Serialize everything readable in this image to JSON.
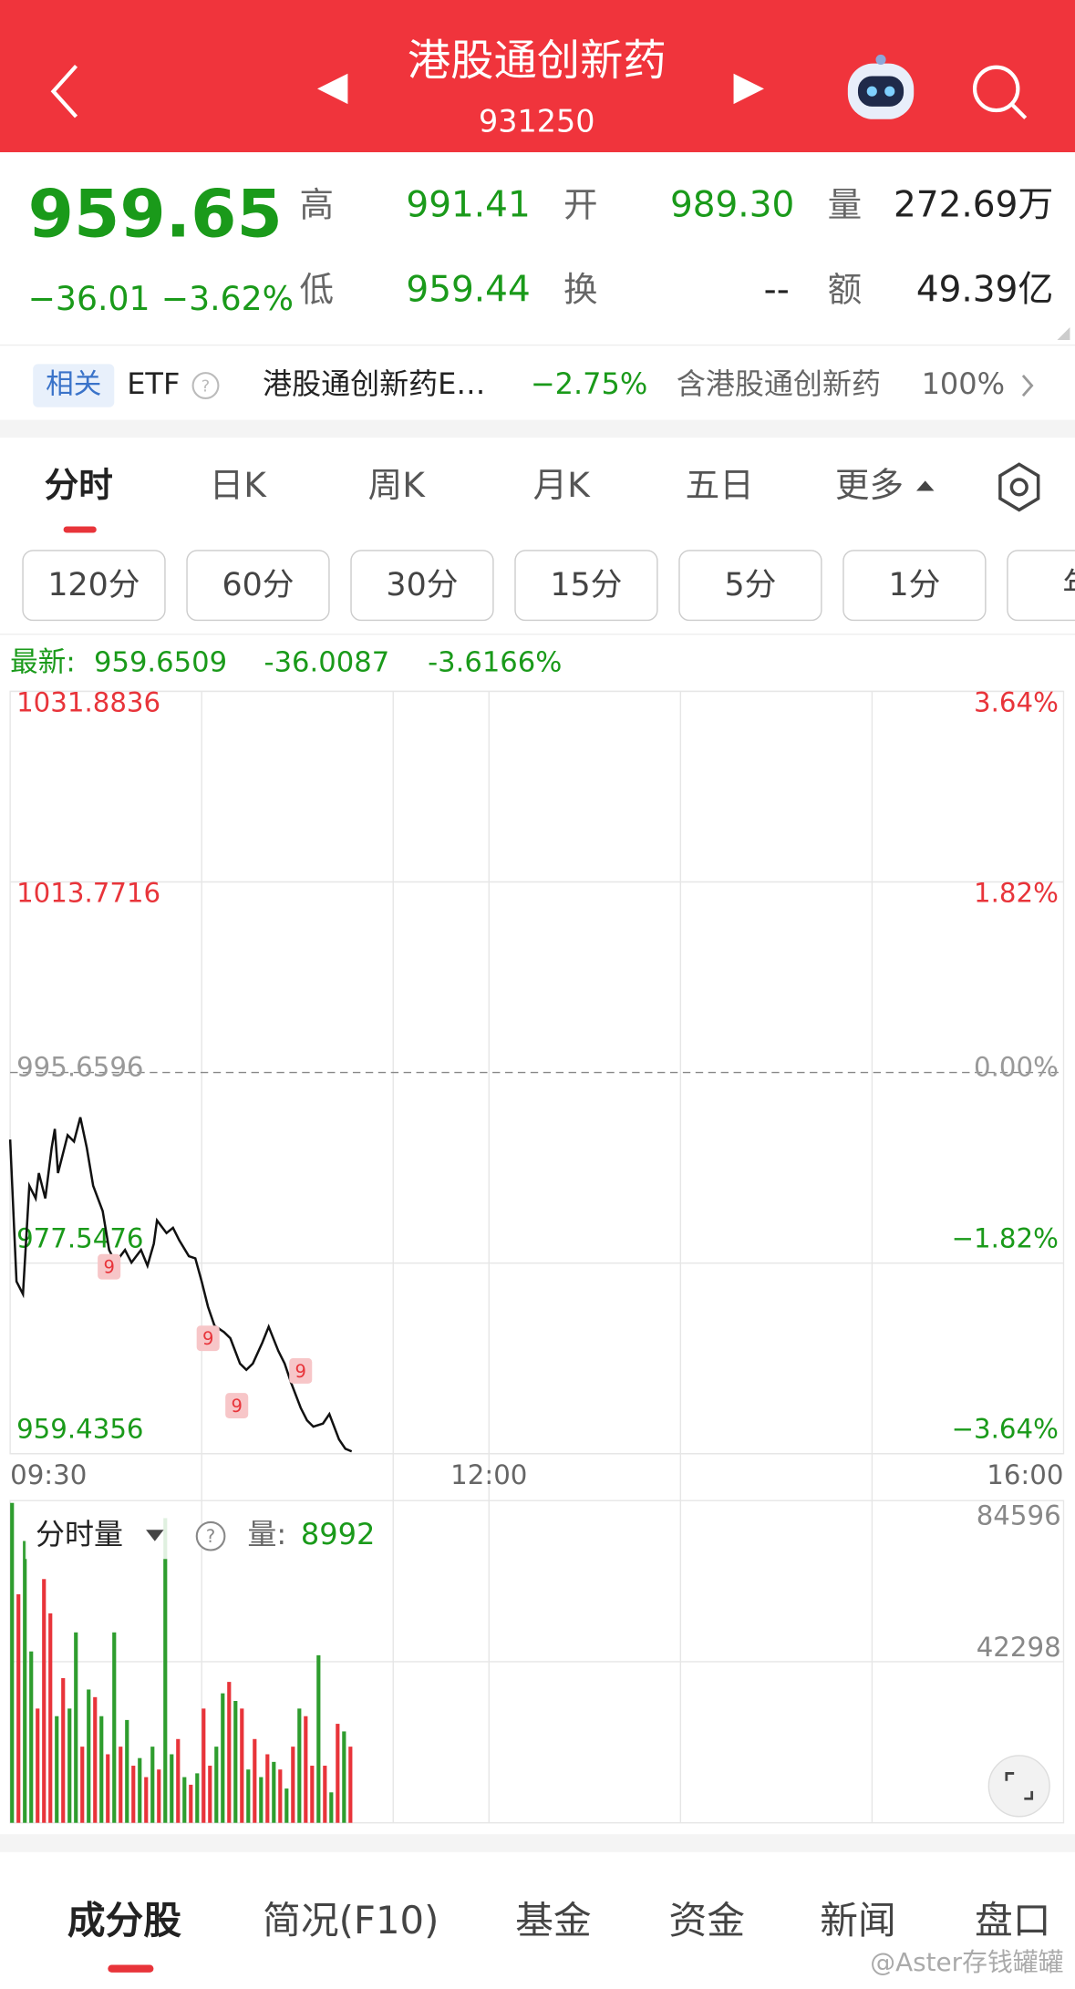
{
  "header": {
    "title": "港股通创新药",
    "code": "931250"
  },
  "quote": {
    "price": "959.65",
    "change": "−36.01",
    "pct": "−3.62%",
    "stats": [
      {
        "label": "高",
        "value": "991.41"
      },
      {
        "label": "开",
        "value": "989.30"
      },
      {
        "label": "量",
        "value": "272.69万"
      },
      {
        "label": "低",
        "value": "959.44"
      },
      {
        "label": "换",
        "value": "--"
      },
      {
        "label": "额",
        "value": "49.39亿"
      }
    ]
  },
  "etf": {
    "tag": "相关",
    "label": "ETF",
    "name": "港股通创新药E…",
    "change": "−2.75%",
    "holding": "含港股通创新药",
    "holding_pct": "100%"
  },
  "tabs": [
    "分时",
    "日K",
    "周K",
    "月K",
    "五日",
    "更多"
  ],
  "periods": [
    "120分",
    "60分",
    "30分",
    "15分",
    "5分",
    "1分",
    "年"
  ],
  "latest": {
    "label": "最新:",
    "price": "959.6509",
    "change": "-36.0087",
    "pct": "-3.6166%"
  },
  "chart_data": [
    {
      "type": "line",
      "color": "#111111",
      "colors": {
        "up": "#e8343a",
        "down": "#1a9a1a",
        "flat": "#999999"
      },
      "x": [
        0,
        2,
        4,
        6,
        8,
        9,
        11,
        13,
        14,
        15,
        18,
        20,
        22,
        24,
        26,
        29,
        31,
        33,
        36,
        38,
        41,
        43,
        45,
        46,
        49,
        51,
        53,
        56,
        58,
        60,
        62,
        64,
        67,
        69,
        72,
        74,
        76,
        79,
        81,
        84,
        86,
        88,
        91,
        93,
        95,
        98,
        100,
        103,
        105,
        107
      ],
      "values": [
        989.3,
        975.8,
        974.6,
        984.9,
        983.7,
        986.1,
        983.7,
        988.5,
        990.3,
        986.1,
        989.7,
        989.1,
        991.4,
        988.5,
        984.9,
        982.5,
        978.8,
        977.6,
        978.8,
        977.6,
        978.8,
        977.3,
        979.4,
        981.6,
        980.4,
        980.9,
        979.7,
        978.2,
        978.0,
        975.8,
        973.4,
        971.6,
        971.0,
        970.4,
        968.0,
        967.4,
        968.0,
        970.0,
        971.5,
        969.2,
        968.0,
        966.2,
        963.8,
        962.6,
        962.0,
        962.3,
        963.2,
        960.8,
        959.9,
        959.65
      ],
      "xlim": [
        0,
        330
      ],
      "xticks": [
        {
          "value": 0,
          "label": "09:30"
        },
        {
          "value": 150,
          "label": "12:00"
        },
        {
          "value": 330,
          "label": "16:00"
        }
      ],
      "xgrid": [
        60,
        120,
        150,
        210,
        270
      ],
      "ylim": [
        959.4356,
        1031.8836
      ],
      "yticks": [
        1031.8836,
        1013.7716,
        995.6596,
        977.5476,
        959.4356
      ],
      "y2lim": [
        -3.64,
        3.64
      ],
      "y2ticks": [
        {
          "value": 3.64,
          "label": "3.64%"
        },
        {
          "value": 1.82,
          "label": "1.82%"
        },
        {
          "value": 0,
          "label": "0.00%"
        },
        {
          "value": -1.82,
          "label": "−1.82%"
        },
        {
          "value": -3.64,
          "label": "−3.64%"
        }
      ],
      "annotations": [
        {
          "x": 31,
          "y": 977.2,
          "text": "9"
        },
        {
          "x": 62,
          "y": 970.4,
          "text": "9"
        },
        {
          "x": 71,
          "y": 964.0,
          "text": "9"
        },
        {
          "x": 91,
          "y": 967.3,
          "text": "9"
        }
      ]
    },
    {
      "type": "bar",
      "title": "分时量",
      "current_label": "量:",
      "current_value": 8992,
      "x": [
        0,
        2,
        4,
        6,
        8,
        10,
        12,
        14,
        16,
        18,
        20,
        22,
        24,
        26,
        28,
        30,
        32,
        34,
        36,
        38,
        40,
        42,
        44,
        46,
        48,
        50,
        52,
        54,
        56,
        58,
        60,
        62,
        64,
        66,
        68,
        70,
        72,
        74,
        76,
        78,
        80,
        82,
        84,
        86,
        88,
        90,
        92,
        94,
        96,
        98,
        100,
        102,
        104,
        106
      ],
      "values": [
        84000,
        60000,
        74000,
        45000,
        30000,
        64000,
        55000,
        28000,
        38000,
        30000,
        50000,
        20000,
        35000,
        33000,
        28000,
        18000,
        50000,
        20000,
        27000,
        15000,
        17000,
        12000,
        20000,
        14000,
        80000,
        18000,
        22000,
        12000,
        10000,
        13000,
        30000,
        15000,
        20000,
        34000,
        37000,
        32000,
        30000,
        14000,
        22000,
        12000,
        18000,
        16000,
        14000,
        9000,
        20000,
        30000,
        28000,
        15000,
        44000,
        15000,
        8000,
        26000,
        24000,
        20000
      ],
      "colors": [
        "#2e9d2e",
        "#e8343a",
        "#2e9d2e",
        "#2e9d2e",
        "#e8343a",
        "#e8343a",
        "#e8343a",
        "#2e9d2e",
        "#e8343a",
        "#2e9d2e",
        "#2e9d2e",
        "#e8343a",
        "#2e9d2e",
        "#e8343a",
        "#2e9d2e",
        "#e8343a",
        "#2e9d2e",
        "#e8343a",
        "#2e9d2e",
        "#e8343a",
        "#2e9d2e",
        "#e8343a",
        "#2e9d2e",
        "#e8343a",
        "#2e9d2e",
        "#2e9d2e",
        "#e8343a",
        "#2e9d2e",
        "#e8343a",
        "#2e9d2e",
        "#e8343a",
        "#e8343a",
        "#2e9d2e",
        "#2e9d2e",
        "#e8343a",
        "#2e9d2e",
        "#e8343a",
        "#2e9d2e",
        "#e8343a",
        "#2e9d2e",
        "#e8343a",
        "#2e9d2e",
        "#e8343a",
        "#2e9d2e",
        "#e8343a",
        "#2e9d2e",
        "#e8343a",
        "#e8343a",
        "#2e9d2e",
        "#e8343a",
        "#2e9d2e",
        "#e8343a",
        "#2e9d2e",
        "#e8343a"
      ],
      "xlim": [
        0,
        330
      ],
      "ylim": [
        0,
        84596
      ],
      "yticks": [
        42298,
        84596
      ]
    }
  ],
  "bottom_tabs": [
    "成分股",
    "简况(F10)",
    "基金",
    "资金",
    "新闻",
    "盘口"
  ],
  "watermark": "@Aster存钱罐罐"
}
